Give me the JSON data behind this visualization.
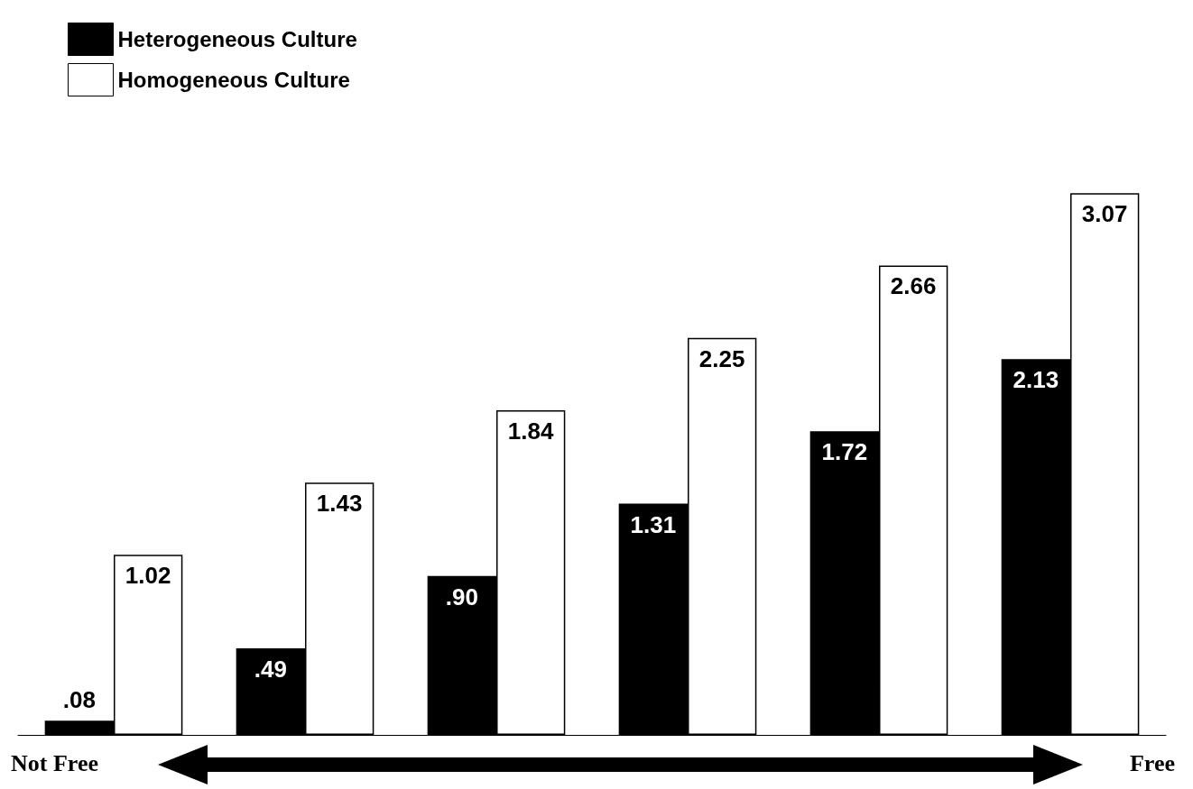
{
  "chart_data": {
    "type": "bar",
    "categories": [
      null,
      null,
      null,
      null,
      null,
      null
    ],
    "series": [
      {
        "name": "Heterogeneous Culture",
        "color": "#000000",
        "values": [
          0.08,
          0.49,
          0.9,
          1.31,
          1.72,
          2.13
        ],
        "value_labels": [
          ".08",
          ".49",
          ".90",
          "1.31",
          "1.72",
          "2.13"
        ]
      },
      {
        "name": "Homogeneous Culture",
        "color": "#ffffff",
        "values": [
          1.02,
          1.43,
          1.84,
          2.25,
          2.66,
          3.07
        ],
        "value_labels": [
          "1.02",
          "1.43",
          "1.84",
          "2.25",
          "2.66",
          "3.07"
        ]
      }
    ],
    "annotations": [
      "Not Free",
      "Free"
    ],
    "legend": "top left",
    "tick_labels": false
  }
}
